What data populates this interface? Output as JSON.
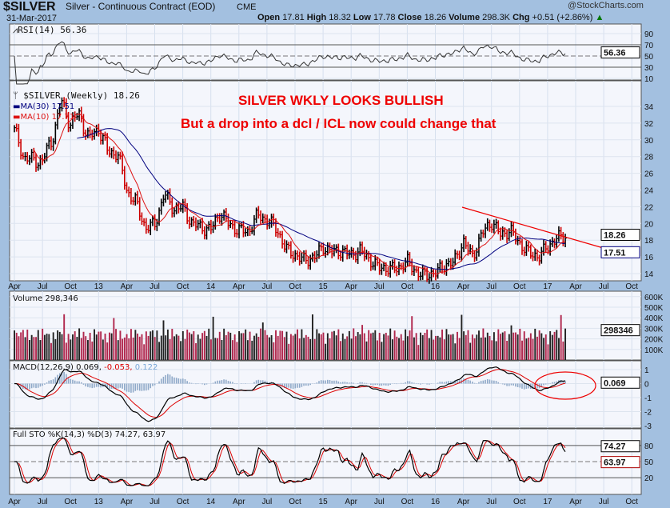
{
  "header": {
    "symbol": "$SILVER",
    "name": "Silver - Continuous Contract (EOD)",
    "exchange": "CME",
    "brand": "@StockCharts.com",
    "date": "31-Mar-2017",
    "open_label": "Open",
    "open": "17.81",
    "high_label": "High",
    "high": "18.32",
    "low_label": "Low",
    "low": "17.78",
    "close_label": "Close",
    "close": "18.26",
    "volume_label": "Volume",
    "volume": "298.3K",
    "chg_label": "Chg",
    "chg": "+0.51 (+2.86%)"
  },
  "annotations": {
    "line1": "SILVER WKLY LOOKS BULLISH",
    "line2": "But a drop into a dcl / ICL now could change that"
  },
  "colors": {
    "bg": "#a3c0e0",
    "panel": "#f4f6fc",
    "up": "#000000",
    "down": "#cc0000",
    "ma30": "#00007f",
    "ma10": "#dd1111",
    "annot": "#ee0000"
  },
  "chart_data": {
    "type": "line",
    "x_labels": [
      "Apr",
      "Jul",
      "Oct",
      "13",
      "Apr",
      "Jul",
      "Oct",
      "14",
      "Apr",
      "Jul",
      "Oct",
      "15",
      "Apr",
      "Jul",
      "Oct",
      "16",
      "Apr",
      "Jul",
      "Oct",
      "17",
      "Apr",
      "Jul",
      "Oct"
    ],
    "monthly_close_start": "Apr 2012",
    "monthly_close": [
      31,
      28,
      27.5,
      27.5,
      30,
      34.5,
      32,
      33,
      30,
      31.5,
      28.5,
      28.5,
      24,
      22.5,
      19.5,
      19.8,
      23.5,
      21.8,
      21.9,
      20,
      19.5,
      19.3,
      21.3,
      19.8,
      19.2,
      19,
      21,
      20.4,
      19.4,
      17,
      16.2,
      15.6,
      15.9,
      17.2,
      16.6,
      16.7,
      16.2,
      16.8,
      15.6,
      14.7,
      14.6,
      14.6,
      15.5,
      14.1,
      13.8,
      14.1,
      15,
      15.4,
      17.8,
      16,
      18.8,
      20.2,
      18.6,
      19.2,
      17.6,
      16.5,
      16,
      17.2,
      18.3,
      18.26
    ],
    "panels": {
      "rsi": {
        "legend": "RSI(14) 56.36",
        "value": "56.36",
        "ticks": [
          "90",
          "70",
          "50",
          "30",
          "10"
        ],
        "ylim": [
          0,
          100
        ]
      },
      "price": {
        "legend": "$SILVER (Weekly) 18.26",
        "ma30": "MA(30) 17.51",
        "ma10": "MA(10) 17.71",
        "last": "18.26",
        "ma_last": "17.51",
        "ticks": [
          "34",
          "32",
          "30",
          "28",
          "26",
          "24",
          "22",
          "20",
          "18",
          "16",
          "14"
        ],
        "ylim": [
          13,
          36
        ]
      },
      "volume": {
        "legend": "Volume 298,346",
        "last": "298346",
        "ticks": [
          "600K",
          "500K",
          "400K",
          "300K",
          "200K",
          "100K"
        ]
      },
      "macd": {
        "legend": "MACD(12,26,9)",
        "macd": "0.069,",
        "signal": "-0.053,",
        "hist": "0.122",
        "last": "0.069",
        "ticks": [
          "1",
          "0",
          "-1",
          "-2",
          "-3"
        ]
      },
      "sto": {
        "legend": "Full STO %K(14,3) %D(3) 74.27, 63.97",
        "k": "74.27",
        "d": "63.97",
        "ticks": [
          "80",
          "50",
          "20"
        ]
      }
    }
  }
}
